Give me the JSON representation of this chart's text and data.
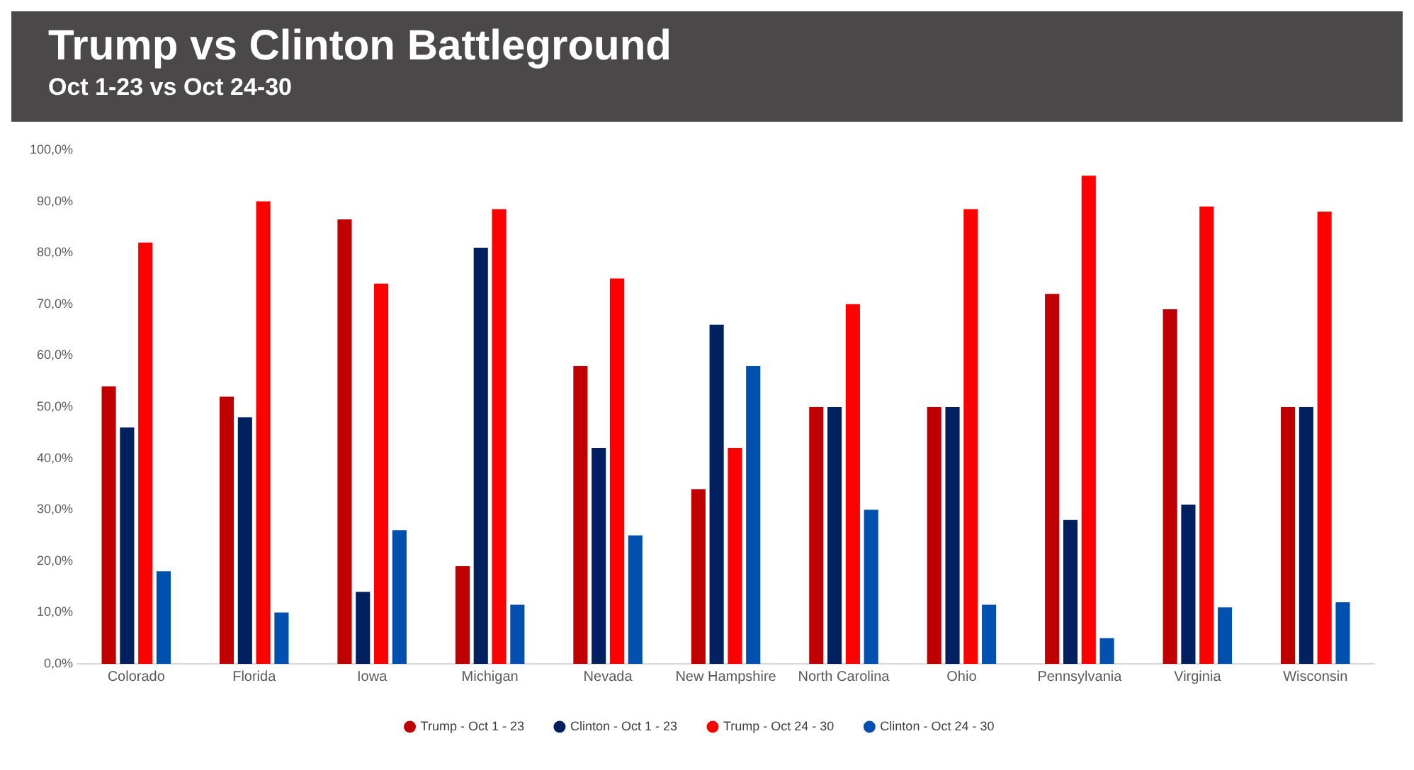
{
  "chart_data": {
    "type": "bar",
    "title": "Trump vs Clinton Battleground",
    "subtitle": "Oct 1-23 vs Oct 24-30",
    "categories": [
      "Colorado",
      "Florida",
      "Iowa",
      "Michigan",
      "Nevada",
      "New Hampshire",
      "North Carolina",
      "Ohio",
      "Pennsylvania",
      "Virginia",
      "Wisconsin"
    ],
    "series": [
      {
        "name": "Trump - Oct 1 - 23",
        "color": "#c00000",
        "values": [
          54,
          52,
          86.5,
          19,
          58,
          34,
          50,
          50,
          72,
          69,
          50
        ]
      },
      {
        "name": "Clinton - Oct 1 - 23",
        "color": "#002060",
        "values": [
          46,
          48,
          14,
          81,
          42,
          66,
          50,
          50,
          28,
          31,
          50
        ]
      },
      {
        "name": "Trump - Oct 24 - 30",
        "color": "#ff0000",
        "values": [
          82,
          90,
          74,
          88.5,
          75,
          42,
          70,
          88.5,
          95,
          89,
          88
        ]
      },
      {
        "name": "Clinton - Oct 24 - 30",
        "color": "#0050b0",
        "values": [
          18,
          10,
          26,
          11.5,
          25,
          58,
          30,
          11.5,
          5,
          11,
          12
        ]
      }
    ],
    "ylim": [
      0,
      100
    ],
    "yticks": [
      {
        "value": 0,
        "label": "0,0%"
      },
      {
        "value": 10,
        "label": "10,0%"
      },
      {
        "value": 20,
        "label": "20,0%"
      },
      {
        "value": 30,
        "label": "30,0%"
      },
      {
        "value": 40,
        "label": "40,0%"
      },
      {
        "value": 50,
        "label": "50,0%"
      },
      {
        "value": 60,
        "label": "60,0%"
      },
      {
        "value": 70,
        "label": "70,0%"
      },
      {
        "value": 80,
        "label": "80,0%"
      },
      {
        "value": 90,
        "label": "90,0%"
      },
      {
        "value": 100,
        "label": "100,0%"
      }
    ],
    "grid": false,
    "legend": "bottom"
  }
}
